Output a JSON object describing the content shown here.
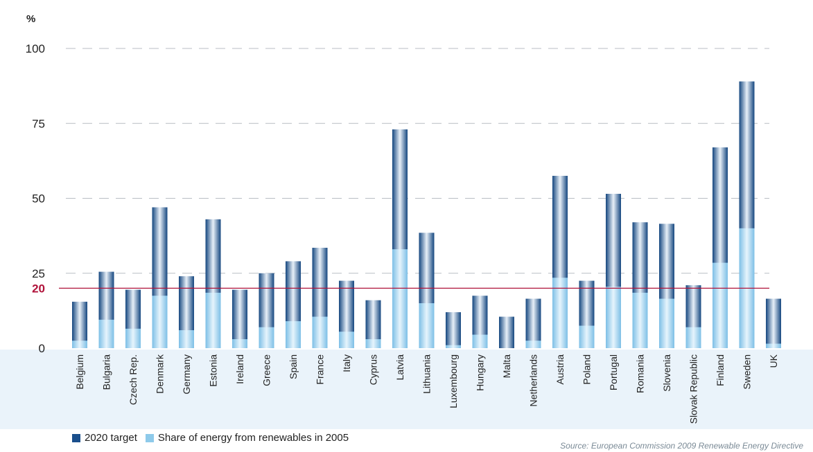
{
  "chart_data": {
    "type": "bar",
    "stacked": "overlay",
    "yunit": "%",
    "ylim": [
      0,
      100
    ],
    "yticks": [
      0,
      25,
      50,
      75,
      100
    ],
    "reference_line": {
      "value": 20,
      "label": "20",
      "color": "#b0123a"
    },
    "grid": "dashed horizontal",
    "legend_position": "bottom-left",
    "categories": [
      "Belgium",
      "Bulgaria",
      "Czech Rep.",
      "Denmark",
      "Germany",
      "Estonia",
      "Ireland",
      "Greece",
      "Spain",
      "France",
      "Italy",
      "Cyprus",
      "Latvia",
      "Lithuania",
      "Luxembourg",
      "Hungary",
      "Malta",
      "Netherlands",
      "Austria",
      "Poland",
      "Portugal",
      "Romania",
      "Slovenia",
      "Slovak Republic",
      "Finland",
      "Sweden",
      "UK"
    ],
    "series": [
      {
        "name": "2020 target",
        "color": "#1a4f8c",
        "values": [
          15.5,
          25.5,
          19.5,
          47,
          24,
          43,
          19.5,
          25,
          29,
          33.5,
          22.5,
          16,
          73,
          38.5,
          12,
          17.5,
          10.5,
          16.5,
          57.5,
          22.5,
          51.5,
          42,
          41.5,
          21,
          67,
          89,
          16.5
        ]
      },
      {
        "name": "Share of energy from renewables in 2005",
        "color": "#8ecaea",
        "values": [
          2.5,
          9.5,
          6.5,
          17.5,
          6,
          18.5,
          3,
          7,
          9,
          10.5,
          5.5,
          3,
          33,
          15,
          1,
          4.5,
          0,
          2.5,
          23.5,
          7.5,
          20.5,
          18.5,
          16.5,
          7,
          28.5,
          40,
          1.5
        ]
      }
    ]
  },
  "source": "Source: European Commission 2009 Renewable Energy Directive"
}
